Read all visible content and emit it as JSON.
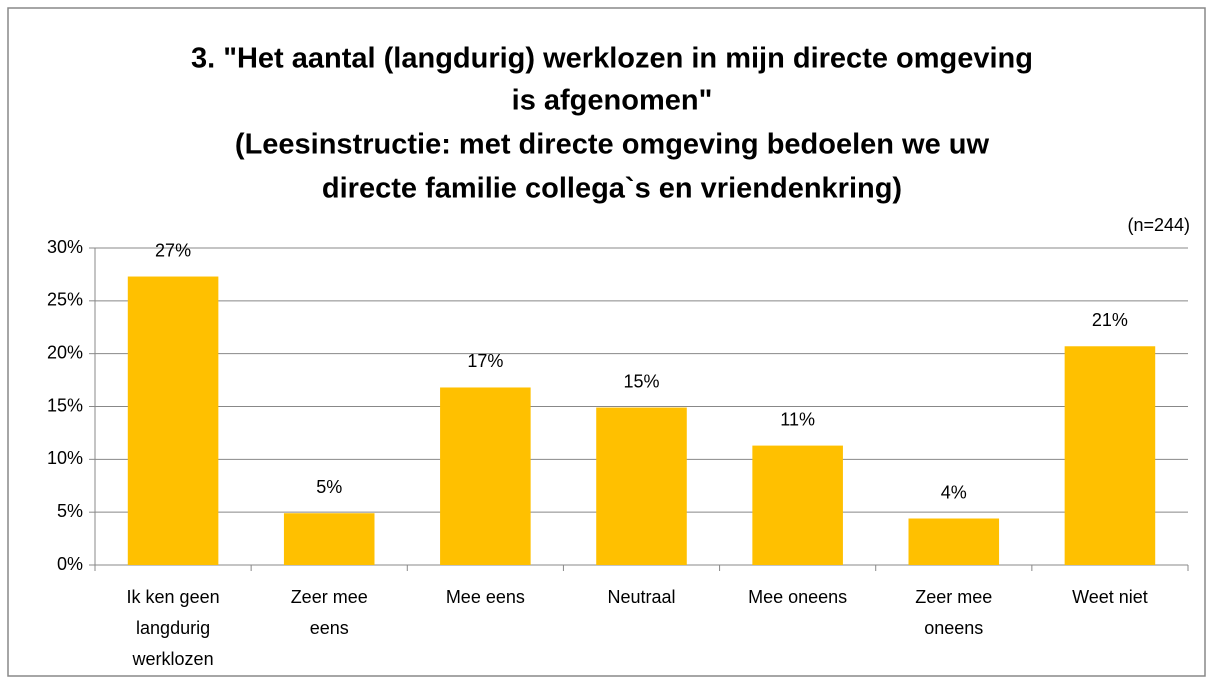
{
  "chart_data": {
    "type": "bar",
    "title": [
      "3. \"Het aantal (langdurig) werklozen in mijn directe omgeving",
      "is afgenomen\"",
      "(Leesinstructie: met directe omgeving bedoelen we uw",
      "directe familie  collega`s en vriendenkring)"
    ],
    "annotation": "(n=244)",
    "categories": [
      "Ik ken geen langdurig werklozen",
      "Zeer mee eens",
      "Mee eens",
      "Neutraal",
      "Mee oneens",
      "Zeer mee oneens",
      "Weet niet"
    ],
    "values": [
      27.3,
      4.9,
      16.8,
      14.9,
      11.3,
      4.4,
      20.7
    ],
    "value_labels": [
      "27%",
      "5%",
      "17%",
      "15%",
      "11%",
      "4%",
      "21%"
    ],
    "color": "#ffc000",
    "ylim": [
      0,
      30
    ],
    "yticks": [
      {
        "value": 0,
        "label": "0%"
      },
      {
        "value": 5,
        "label": "5%"
      },
      {
        "value": 10,
        "label": "10%"
      },
      {
        "value": 15,
        "label": "15%"
      },
      {
        "value": 20,
        "label": "20%"
      },
      {
        "value": 25,
        "label": "25%"
      },
      {
        "value": 30,
        "label": "30%"
      }
    ],
    "grid": true
  }
}
